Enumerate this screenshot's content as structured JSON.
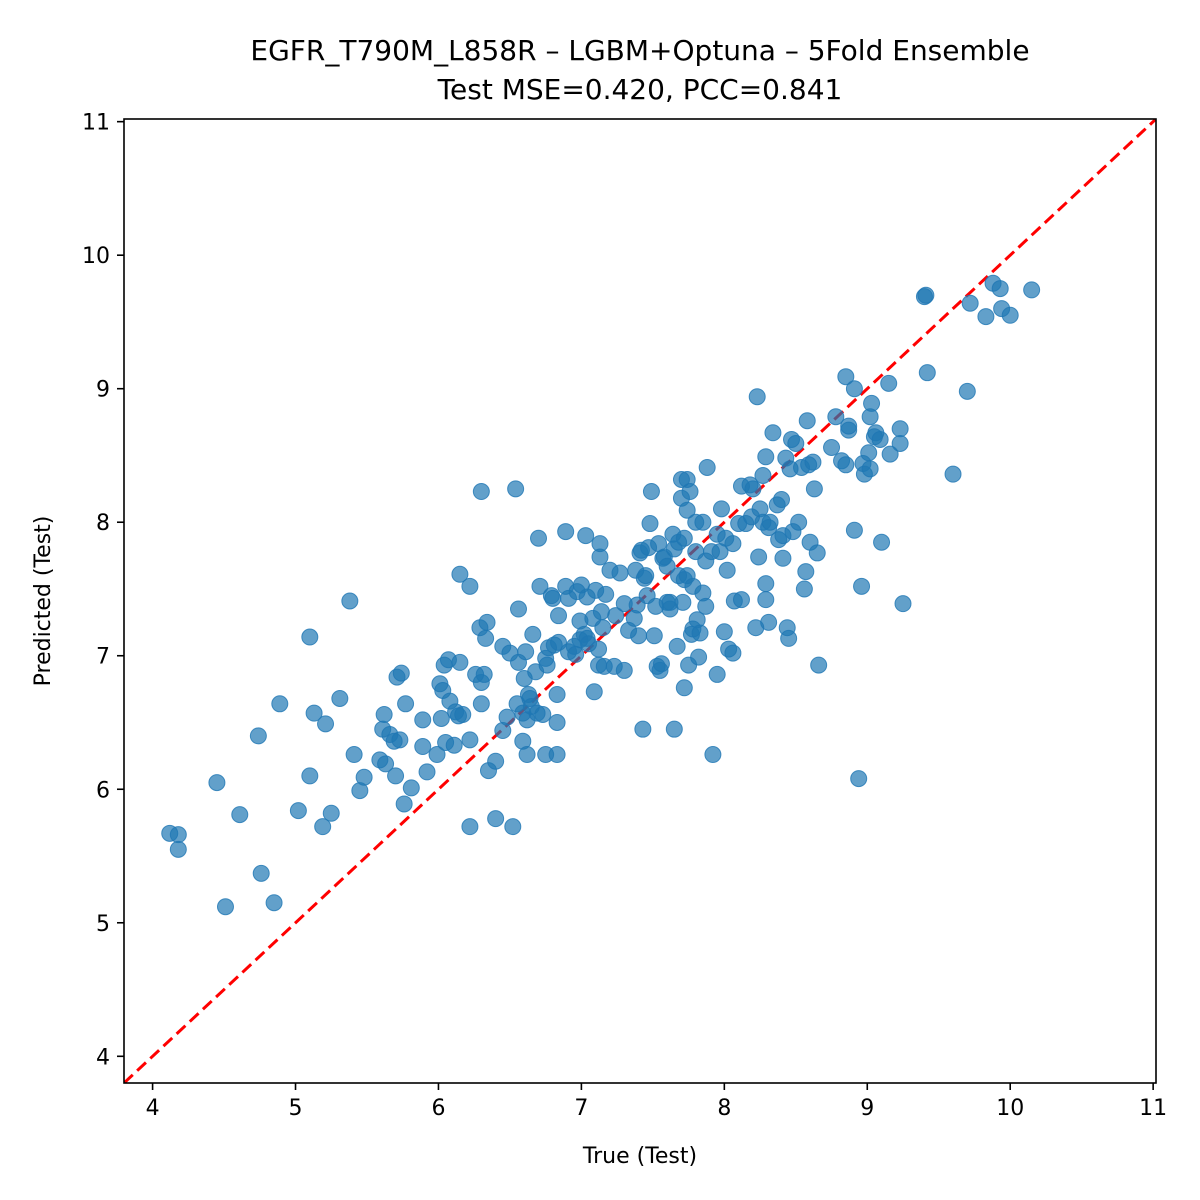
{
  "chart_data": {
    "type": "scatter",
    "title_line1": "EGFR_T790M_L858R – LGBM+Optuna – 5Fold Ensemble",
    "title_line2": "Test MSE=0.420, PCC=0.841",
    "xlabel": "True (Test)",
    "ylabel": "Predicted (Test)",
    "xlim": [
      3.8,
      11.02
    ],
    "ylim": [
      3.8,
      11.02
    ],
    "xticks": [
      "4",
      "5",
      "6",
      "7",
      "8",
      "9",
      "10",
      "11"
    ],
    "yticks": [
      "4",
      "5",
      "6",
      "7",
      "8",
      "9",
      "10",
      "11"
    ],
    "point_color": "#1f77b4",
    "reference_line": {
      "from": [
        3.8,
        3.8
      ],
      "to": [
        11.02,
        11.02
      ],
      "color": "#ff0000",
      "style": "dashed"
    },
    "grid": false,
    "legend": "none",
    "points": [
      [
        4.12,
        5.67
      ],
      [
        4.18,
        5.66
      ],
      [
        4.18,
        5.55
      ],
      [
        4.45,
        6.05
      ],
      [
        4.51,
        5.12
      ],
      [
        4.61,
        5.81
      ],
      [
        4.74,
        6.4
      ],
      [
        4.76,
        5.37
      ],
      [
        4.85,
        5.15
      ],
      [
        4.89,
        6.64
      ],
      [
        5.02,
        5.84
      ],
      [
        5.1,
        6.1
      ],
      [
        5.1,
        7.14
      ],
      [
        5.13,
        6.57
      ],
      [
        5.19,
        5.72
      ],
      [
        5.21,
        6.49
      ],
      [
        5.25,
        5.82
      ],
      [
        5.31,
        6.68
      ],
      [
        5.38,
        7.41
      ],
      [
        5.41,
        6.26
      ],
      [
        5.45,
        5.99
      ],
      [
        5.48,
        6.09
      ],
      [
        5.59,
        6.22
      ],
      [
        5.61,
        6.45
      ],
      [
        5.62,
        6.56
      ],
      [
        5.63,
        6.19
      ],
      [
        5.66,
        6.41
      ],
      [
        5.69,
        6.36
      ],
      [
        5.7,
        6.1
      ],
      [
        5.71,
        6.84
      ],
      [
        5.73,
        6.37
      ],
      [
        5.74,
        6.87
      ],
      [
        5.76,
        5.89
      ],
      [
        5.77,
        6.64
      ],
      [
        5.81,
        6.01
      ],
      [
        5.89,
        6.32
      ],
      [
        5.89,
        6.52
      ],
      [
        5.92,
        6.13
      ],
      [
        5.99,
        6.26
      ],
      [
        6.01,
        6.79
      ],
      [
        6.02,
        6.53
      ],
      [
        6.03,
        6.74
      ],
      [
        6.04,
        6.93
      ],
      [
        6.05,
        6.35
      ],
      [
        6.07,
        6.97
      ],
      [
        6.08,
        6.66
      ],
      [
        6.11,
        6.33
      ],
      [
        6.12,
        6.58
      ],
      [
        6.14,
        6.55
      ],
      [
        6.15,
        6.95
      ],
      [
        6.15,
        7.61
      ],
      [
        6.17,
        6.56
      ],
      [
        6.22,
        7.52
      ],
      [
        6.22,
        6.37
      ],
      [
        6.22,
        5.72
      ],
      [
        6.26,
        6.86
      ],
      [
        6.29,
        7.21
      ],
      [
        6.3,
        6.64
      ],
      [
        6.3,
        6.8
      ],
      [
        6.3,
        8.23
      ],
      [
        6.32,
        6.86
      ],
      [
        6.33,
        7.13
      ],
      [
        6.34,
        7.25
      ],
      [
        6.35,
        6.14
      ],
      [
        6.4,
        6.21
      ],
      [
        6.4,
        5.78
      ],
      [
        6.45,
        7.07
      ],
      [
        6.45,
        6.44
      ],
      [
        6.48,
        6.54
      ],
      [
        6.5,
        7.02
      ],
      [
        6.52,
        5.72
      ],
      [
        6.54,
        8.25
      ],
      [
        6.55,
        6.64
      ],
      [
        6.56,
        6.95
      ],
      [
        6.56,
        7.35
      ],
      [
        6.59,
        6.57
      ],
      [
        6.59,
        6.36
      ],
      [
        6.6,
        6.83
      ],
      [
        6.61,
        7.03
      ],
      [
        6.62,
        6.26
      ],
      [
        6.62,
        6.52
      ],
      [
        6.63,
        6.71
      ],
      [
        6.64,
        6.68
      ],
      [
        6.65,
        6.62
      ],
      [
        6.66,
        7.16
      ],
      [
        6.68,
        6.88
      ],
      [
        6.69,
        6.57
      ],
      [
        6.7,
        7.88
      ],
      [
        6.71,
        7.52
      ],
      [
        6.73,
        6.56
      ],
      [
        6.75,
        6.98
      ],
      [
        6.75,
        6.26
      ],
      [
        6.76,
        6.93
      ],
      [
        6.77,
        7.06
      ],
      [
        6.79,
        7.45
      ],
      [
        6.8,
        7.43
      ],
      [
        6.81,
        7.08
      ],
      [
        6.83,
        6.26
      ],
      [
        6.83,
        6.71
      ],
      [
        6.83,
        6.5
      ],
      [
        6.84,
        7.3
      ],
      [
        6.84,
        7.1
      ],
      [
        6.89,
        7.93
      ],
      [
        6.89,
        7.52
      ],
      [
        6.91,
        7.03
      ],
      [
        6.91,
        7.43
      ],
      [
        6.95,
        7.07
      ],
      [
        6.96,
        7.01
      ],
      [
        6.97,
        7.48
      ],
      [
        6.99,
        7.12
      ],
      [
        6.99,
        7.26
      ],
      [
        7.0,
        7.53
      ],
      [
        7.02,
        7.16
      ],
      [
        7.03,
        7.9
      ],
      [
        7.04,
        7.13
      ],
      [
        7.04,
        7.44
      ],
      [
        7.05,
        7.09
      ],
      [
        7.08,
        7.28
      ],
      [
        7.09,
        6.73
      ],
      [
        7.1,
        7.49
      ],
      [
        7.12,
        6.93
      ],
      [
        7.12,
        7.05
      ],
      [
        7.13,
        7.74
      ],
      [
        7.13,
        7.84
      ],
      [
        7.14,
        7.33
      ],
      [
        7.15,
        7.21
      ],
      [
        7.16,
        6.92
      ],
      [
        7.17,
        7.46
      ],
      [
        7.2,
        7.64
      ],
      [
        7.23,
        6.92
      ],
      [
        7.24,
        7.3
      ],
      [
        7.27,
        7.62
      ],
      [
        7.3,
        7.39
      ],
      [
        7.3,
        6.89
      ],
      [
        7.33,
        7.19
      ],
      [
        7.37,
        7.28
      ],
      [
        7.38,
        7.64
      ],
      [
        7.39,
        7.38
      ],
      [
        7.4,
        7.15
      ],
      [
        7.41,
        7.77
      ],
      [
        7.42,
        7.79
      ],
      [
        7.43,
        6.45
      ],
      [
        7.44,
        7.58
      ],
      [
        7.45,
        7.6
      ],
      [
        7.46,
        7.45
      ],
      [
        7.47,
        7.81
      ],
      [
        7.48,
        7.99
      ],
      [
        7.49,
        8.23
      ],
      [
        7.51,
        7.15
      ],
      [
        7.52,
        7.37
      ],
      [
        7.53,
        6.92
      ],
      [
        7.54,
        7.84
      ],
      [
        7.55,
        6.89
      ],
      [
        7.56,
        6.94
      ],
      [
        7.57,
        7.73
      ],
      [
        7.58,
        7.74
      ],
      [
        7.6,
        7.4
      ],
      [
        7.6,
        7.67
      ],
      [
        7.62,
        7.35
      ],
      [
        7.62,
        7.4
      ],
      [
        7.64,
        7.91
      ],
      [
        7.65,
        6.45
      ],
      [
        7.65,
        7.8
      ],
      [
        7.67,
        7.07
      ],
      [
        7.68,
        7.6
      ],
      [
        7.68,
        7.85
      ],
      [
        7.7,
        8.32
      ],
      [
        7.7,
        8.18
      ],
      [
        7.71,
        7.4
      ],
      [
        7.72,
        6.76
      ],
      [
        7.72,
        7.57
      ],
      [
        7.72,
        7.88
      ],
      [
        7.74,
        8.32
      ],
      [
        7.74,
        7.6
      ],
      [
        7.74,
        8.09
      ],
      [
        7.75,
        6.93
      ],
      [
        7.76,
        8.23
      ],
      [
        7.77,
        7.16
      ],
      [
        7.78,
        7.2
      ],
      [
        7.78,
        7.52
      ],
      [
        7.8,
        8.0
      ],
      [
        7.8,
        7.78
      ],
      [
        7.81,
        7.27
      ],
      [
        7.82,
        6.99
      ],
      [
        7.83,
        7.17
      ],
      [
        7.85,
        8.0
      ],
      [
        7.85,
        7.47
      ],
      [
        7.87,
        7.71
      ],
      [
        7.87,
        7.37
      ],
      [
        7.88,
        8.41
      ],
      [
        7.91,
        7.78
      ],
      [
        7.92,
        6.26
      ],
      [
        7.95,
        6.86
      ],
      [
        7.95,
        7.91
      ],
      [
        7.97,
        7.78
      ],
      [
        7.98,
        8.1
      ],
      [
        8.0,
        7.18
      ],
      [
        8.01,
        7.88
      ],
      [
        8.02,
        7.64
      ],
      [
        8.03,
        7.05
      ],
      [
        8.06,
        7.02
      ],
      [
        8.06,
        7.84
      ],
      [
        8.07,
        7.41
      ],
      [
        8.1,
        7.99
      ],
      [
        8.12,
        7.42
      ],
      [
        8.12,
        8.27
      ],
      [
        8.15,
        7.99
      ],
      [
        8.18,
        8.28
      ],
      [
        8.19,
        8.04
      ],
      [
        8.2,
        8.25
      ],
      [
        8.22,
        7.21
      ],
      [
        8.23,
        8.94
      ],
      [
        8.24,
        7.74
      ],
      [
        8.25,
        8.1
      ],
      [
        8.27,
        8.0
      ],
      [
        8.27,
        8.35
      ],
      [
        8.29,
        8.49
      ],
      [
        8.29,
        7.54
      ],
      [
        8.29,
        7.42
      ],
      [
        8.31,
        7.96
      ],
      [
        8.31,
        7.25
      ],
      [
        8.32,
        8.0
      ],
      [
        8.34,
        8.67
      ],
      [
        8.37,
        8.13
      ],
      [
        8.38,
        7.87
      ],
      [
        8.4,
        8.17
      ],
      [
        8.41,
        7.9
      ],
      [
        8.41,
        7.73
      ],
      [
        8.43,
        8.48
      ],
      [
        8.44,
        7.21
      ],
      [
        8.45,
        7.13
      ],
      [
        8.46,
        8.4
      ],
      [
        8.47,
        8.62
      ],
      [
        8.48,
        7.93
      ],
      [
        8.5,
        8.59
      ],
      [
        8.52,
        8.0
      ],
      [
        8.54,
        8.41
      ],
      [
        8.56,
        7.5
      ],
      [
        8.57,
        7.63
      ],
      [
        8.58,
        8.76
      ],
      [
        8.59,
        8.43
      ],
      [
        8.6,
        7.85
      ],
      [
        8.62,
        8.45
      ],
      [
        8.63,
        8.25
      ],
      [
        8.65,
        7.77
      ],
      [
        8.66,
        6.93
      ],
      [
        8.75,
        8.56
      ],
      [
        8.78,
        8.79
      ],
      [
        8.82,
        8.46
      ],
      [
        8.85,
        8.43
      ],
      [
        8.85,
        9.09
      ],
      [
        8.87,
        8.69
      ],
      [
        8.87,
        8.72
      ],
      [
        8.91,
        9.0
      ],
      [
        8.91,
        7.94
      ],
      [
        8.94,
        6.08
      ],
      [
        8.96,
        7.52
      ],
      [
        8.97,
        8.44
      ],
      [
        8.98,
        8.36
      ],
      [
        9.01,
        8.52
      ],
      [
        9.02,
        8.79
      ],
      [
        9.02,
        8.4
      ],
      [
        9.03,
        8.89
      ],
      [
        9.05,
        8.64
      ],
      [
        9.06,
        8.67
      ],
      [
        9.09,
        8.62
      ],
      [
        9.1,
        7.85
      ],
      [
        9.15,
        9.04
      ],
      [
        9.16,
        8.51
      ],
      [
        9.23,
        8.59
      ],
      [
        9.23,
        8.7
      ],
      [
        9.25,
        7.39
      ],
      [
        9.4,
        9.69
      ],
      [
        9.41,
        9.7
      ],
      [
        9.42,
        9.12
      ],
      [
        9.6,
        8.36
      ],
      [
        9.7,
        8.98
      ],
      [
        9.72,
        9.64
      ],
      [
        9.83,
        9.54
      ],
      [
        9.88,
        9.79
      ],
      [
        9.93,
        9.75
      ],
      [
        9.94,
        9.6
      ],
      [
        10.0,
        9.55
      ],
      [
        10.15,
        9.74
      ]
    ]
  }
}
